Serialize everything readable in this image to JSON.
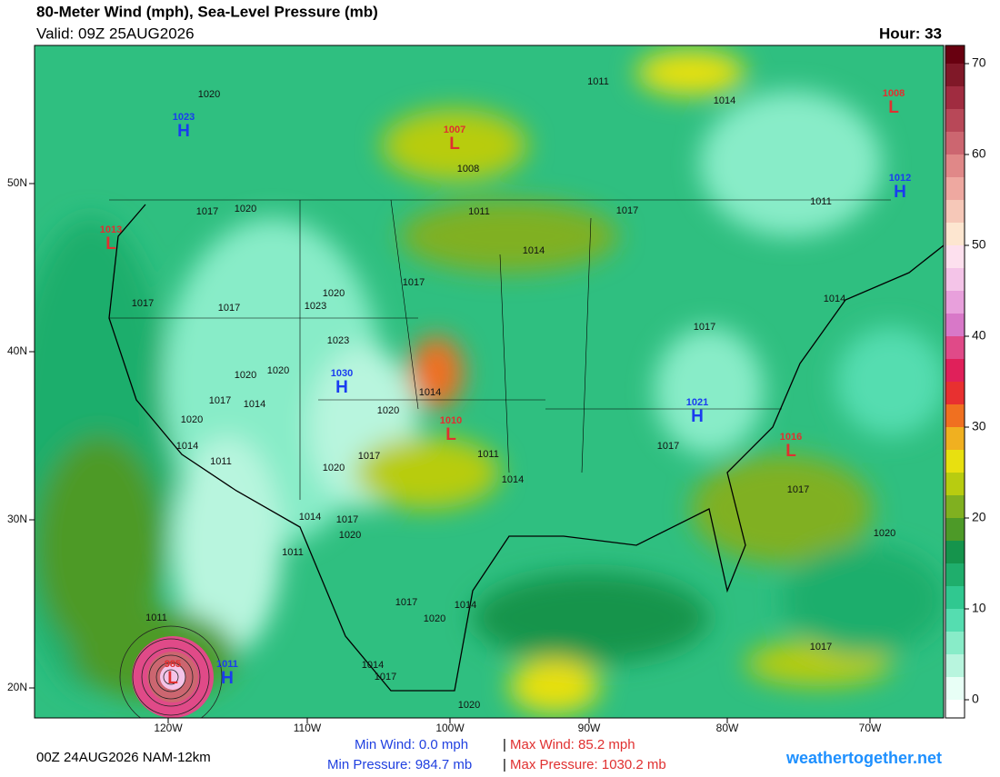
{
  "header": {
    "title": "80-Meter Wind (mph), Sea-Level Pressure (mb)",
    "valid": "Valid: 09Z 25AUG2026",
    "hour": "Hour: 33"
  },
  "map": {
    "lon_labels": [
      "120W",
      "110W",
      "100W",
      "90W",
      "80W",
      "70W"
    ],
    "lat_labels": [
      "50N",
      "40N",
      "30N",
      "20N"
    ],
    "centers": [
      {
        "type": "H",
        "value": "1023"
      },
      {
        "type": "L",
        "value": "1007"
      },
      {
        "type": "L",
        "value": "1008"
      },
      {
        "type": "H",
        "value": "1012"
      },
      {
        "type": "L",
        "value": "1013"
      },
      {
        "type": "H",
        "value": "1030"
      },
      {
        "type": "L",
        "value": "1010"
      },
      {
        "type": "H",
        "value": "1021"
      },
      {
        "type": "L",
        "value": "1016"
      },
      {
        "type": "L",
        "value": "985"
      },
      {
        "type": "H",
        "value": "1011"
      }
    ],
    "isobar_labels": [
      "1020",
      "1011",
      "1014",
      "1008",
      "1011",
      "1017",
      "1020",
      "1011",
      "1017",
      "1014",
      "1017",
      "1020",
      "1023",
      "1017",
      "1017",
      "1014",
      "1017",
      "1023",
      "1020",
      "1020",
      "1014",
      "1017",
      "1014",
      "1020",
      "1020",
      "1014",
      "1011",
      "1017",
      "1011",
      "1017",
      "1020",
      "1014",
      "1017",
      "1014",
      "1017",
      "1020",
      "1011",
      "1020",
      "1017",
      "1014",
      "1020",
      "1011",
      "1017",
      "1014",
      "1017",
      "1020"
    ]
  },
  "colorbar": {
    "range": [
      -2,
      72
    ],
    "ticks": [
      0,
      10,
      20,
      30,
      40,
      50,
      60,
      70
    ],
    "bins": [
      -2,
      0,
      2.5,
      5,
      7.5,
      10,
      12.5,
      15,
      17.5,
      20,
      22.5,
      25,
      27.5,
      30,
      32.5,
      35,
      37.5,
      40,
      42.5,
      45,
      47.5,
      50,
      52.5,
      55,
      57.5,
      60,
      62.5,
      65,
      67.5,
      70,
      72
    ],
    "colors": [
      "#ffffff",
      "#e8fff6",
      "#b8f5de",
      "#88ecc8",
      "#55ddb0",
      "#30c890",
      "#1fae6c",
      "#15944c",
      "#4d9a28",
      "#80b020",
      "#b8cc10",
      "#e8e010",
      "#f0b020",
      "#f07020",
      "#e83030",
      "#e0205a",
      "#e04a88",
      "#d878c8",
      "#e8a0dc",
      "#f4c4e8",
      "#fde0ee",
      "#fde6d0",
      "#f6c8b8",
      "#eea8a0",
      "#e08888",
      "#cc6670",
      "#b84858",
      "#a02c40",
      "#801828",
      "#680010"
    ]
  },
  "footer": {
    "run": "00Z 24AUG2026 NAM-12km",
    "min_wind": "Min Wind:  0.0 mph",
    "max_wind": "Max Wind:  85.2 mph",
    "min_pressure": "Min Pressure: 984.7 mb",
    "max_pressure": "Max Pressure: 1030.2 mb",
    "separator": "|",
    "site": "weathertogether.net"
  }
}
